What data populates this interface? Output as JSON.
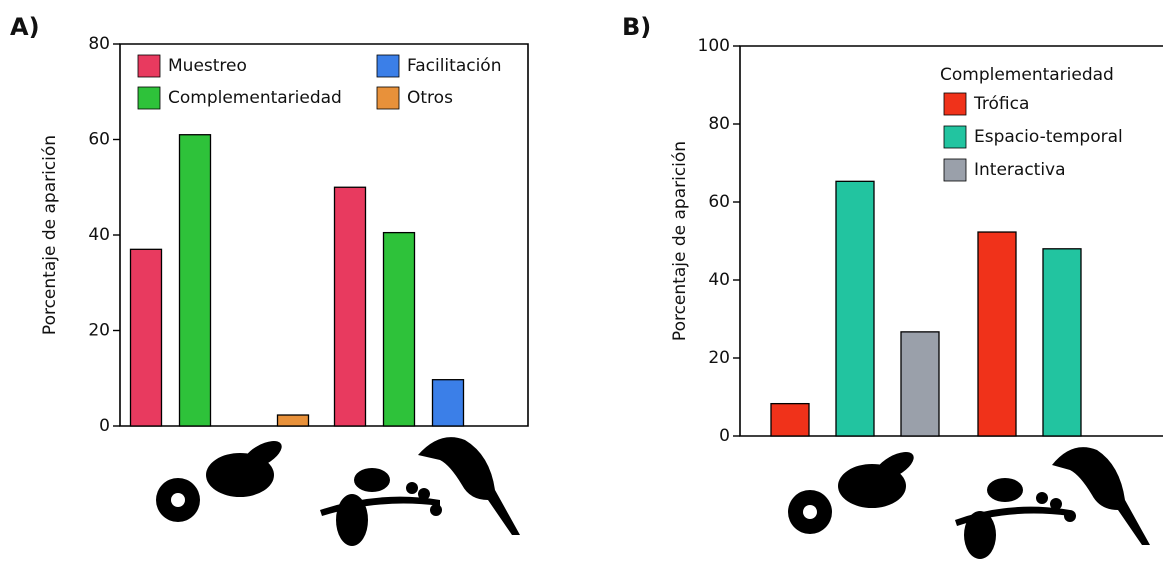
{
  "chart_data": [
    {
      "type": "bar",
      "panel": "A)",
      "ylabel": "Porcentaje de aparición",
      "categories": [
        null,
        null
      ],
      "ylim": [
        0,
        80
      ],
      "yticks": [
        0,
        20,
        40,
        60,
        80
      ],
      "series": [
        {
          "name": "Muestreo",
          "color": "#e83a5f",
          "values": [
            37,
            50
          ]
        },
        {
          "name": "Complementariedad",
          "color": "#2ec23a",
          "values": [
            61,
            40.5
          ]
        },
        {
          "name": "Facilitación",
          "color": "#3b7fe8",
          "values": [
            0,
            9.7
          ]
        },
        {
          "name": "Otros",
          "color": "#e8913a",
          "values": [
            2.3,
            0
          ]
        }
      ]
    },
    {
      "type": "bar",
      "panel": "B)",
      "ylabel": "Porcentaje de aparición",
      "legend_title": "Complementariedad",
      "categories": [
        null,
        null
      ],
      "ylim": [
        0,
        100
      ],
      "yticks": [
        0,
        20,
        40,
        60,
        80,
        100
      ],
      "series": [
        {
          "name": "Trófica",
          "color": "#f0321a",
          "values": [
            8.3,
            52.3
          ]
        },
        {
          "name": "Espacio-temporal",
          "color": "#22c4a0",
          "values": [
            65.3,
            48
          ]
        },
        {
          "name": "Interactiva",
          "color": "#9aa0aa",
          "values": [
            26.7,
            0
          ]
        }
      ]
    }
  ]
}
